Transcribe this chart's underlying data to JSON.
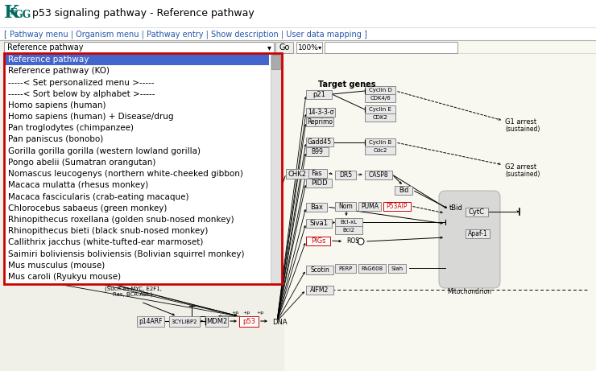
{
  "title": "p53 signaling pathway - Reference pathway",
  "kegg_color": "#006b5e",
  "nav_links": "[ Pathway menu | Organism menu | Pathway entry | Show description | User data mapping ]",
  "dropdown_label": "Reference pathway",
  "dropdown_items": [
    "Reference pathway",
    "Reference pathway (KO)",
    "-----< Set personalized menu >-----",
    "-----< Sort below by alphabet >-----",
    "Homo sapiens (human)",
    "Homo sapiens (human) + Disease/drug",
    "Pan troglodytes (chimpanzee)",
    "Pan paniscus (bonobo)",
    "Gorilla gorilla gorilla (western lowland gorilla)",
    "Pongo abelii (Sumatran orangutan)",
    "Nomascus leucogenys (northern white-cheeked gibbon)",
    "Macaca mulatta (rhesus monkey)",
    "Macaca fascicularis (crab-eating macaque)",
    "Chlorocebus sabaeus (green monkey)",
    "Rhinopithecus roxellana (golden snub-nosed monkey)",
    "Rhinopithecus bieti (black snub-nosed monkey)",
    "Callithrix jacchus (white-tufted-ear marmoset)",
    "Saimiri boliviensis boliviensis (Bolivian squirrel monkey)",
    "Mus musculus (mouse)",
    "Mus caroli (Ryukyu mouse)"
  ],
  "bg_color": "#f0f0e8",
  "header_bg": "#ffffff",
  "dd_border": "#cc0000",
  "dd_sel_bg": "#4466cc",
  "dd_sel_fg": "#ffffff",
  "dd_fg": "#000000",
  "box_fc": "#e8e8e8",
  "box_ec": "#888888",
  "red_fc": "#ffffff",
  "red_ec": "#cc0000",
  "red_fg": "#cc0000",
  "arr": "#000000",
  "mito_fc": "#d0d0d0"
}
